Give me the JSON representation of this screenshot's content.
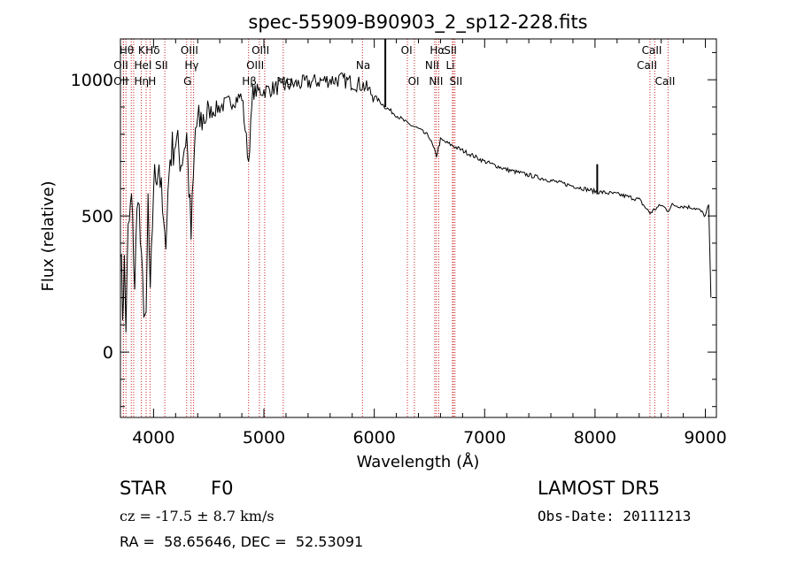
{
  "chart_data": {
    "type": "line",
    "title": "spec-55909-B90903_2_sp12-228.fits",
    "xlabel": "Wavelength (Å)",
    "ylabel": "Flux (relative)",
    "xlim": [
      3700,
      9100
    ],
    "ylim": [
      -240,
      1150
    ],
    "xticks": [
      4000,
      5000,
      6000,
      7000,
      8000,
      9000
    ],
    "yticks": [
      0,
      500,
      1000
    ],
    "grid": false,
    "series": [
      {
        "x": [
          3700,
          3720,
          3735,
          3750,
          3770,
          3800,
          3830,
          3860,
          3890,
          3933,
          3950,
          3970,
          4000,
          4050,
          4102,
          4150,
          4200,
          4250,
          4300,
          4340,
          4380,
          4450,
          4500,
          4600,
          4700,
          4800,
          4861,
          4900,
          5000,
          5100,
          5200,
          5300,
          5400,
          5500,
          5600,
          5700,
          5800,
          5900,
          5950,
          6000,
          6100,
          6200,
          6300,
          6400,
          6500,
          6563,
          6600,
          6700,
          6800,
          6900,
          7000,
          7200,
          7400,
          7600,
          7800,
          8000,
          8200,
          8400,
          8498,
          8542,
          8600,
          8662,
          8700,
          8800,
          8900,
          8950,
          9000,
          9030,
          9050
        ],
        "y": [
          430,
          150,
          320,
          100,
          430,
          560,
          250,
          620,
          300,
          80,
          560,
          170,
          620,
          700,
          380,
          720,
          780,
          700,
          800,
          420,
          820,
          860,
          880,
          900,
          920,
          940,
          700,
          955,
          960,
          970,
          980,
          985,
          990,
          995,
          1000,
          1000,
          990,
          980,
          960,
          940,
          900,
          870,
          840,
          820,
          790,
          720,
          780,
          760,
          740,
          720,
          700,
          670,
          650,
          630,
          610,
          590,
          580,
          560,
          510,
          525,
          540,
          520,
          540,
          535,
          530,
          520,
          500,
          540,
          200
        ]
      }
    ],
    "spikes": [
      {
        "x": 6100,
        "y": 1150
      },
      {
        "x": 8020,
        "y": 690
      }
    ],
    "lines": [
      {
        "x": 3750,
        "label": "Hθ",
        "row": 0
      },
      {
        "x": 3727,
        "label": "OII",
        "row": 1
      },
      {
        "x": 3727,
        "label": "OII",
        "row": 2
      },
      {
        "x": 3798,
        "label": "Hη",
        "row": 2
      },
      {
        "x": 3820,
        "label": "HeI",
        "row": 1
      },
      {
        "x": 3889,
        "label": "K",
        "row": 0
      },
      {
        "x": 3933,
        "label": "H",
        "row": 2
      },
      {
        "x": 3970,
        "label": "Hδ",
        "row": 0
      },
      {
        "x": 4102,
        "label": "SII",
        "row": 1
      },
      {
        "x": 4300,
        "label": "G",
        "row": 2
      },
      {
        "x": 4340,
        "label": "Hγ",
        "row": 1
      },
      {
        "x": 4363,
        "label": "OIII",
        "row": 0
      },
      {
        "x": 4861,
        "label": "Hβ",
        "row": 2
      },
      {
        "x": 4959,
        "label": "OIII",
        "row": 1
      },
      {
        "x": 5007,
        "label": "OIII",
        "row": 0
      },
      {
        "x": 5175,
        "label": "Mg",
        "row": 2
      },
      {
        "x": 5893,
        "label": "Na",
        "row": 1
      },
      {
        "x": 6300,
        "label": "OI",
        "row": 0
      },
      {
        "x": 6364,
        "label": "OI",
        "row": 2
      },
      {
        "x": 6548,
        "label": "NII",
        "row": 1
      },
      {
        "x": 6563,
        "label": "Hα",
        "row": 0
      },
      {
        "x": 6584,
        "label": "NII",
        "row": 2
      },
      {
        "x": 6708,
        "label": "Li",
        "row": 1
      },
      {
        "x": 6717,
        "label": "SII",
        "row": 0
      },
      {
        "x": 6731,
        "label": "SII",
        "row": 2
      },
      {
        "x": 8498,
        "label": "CaII",
        "row": 1
      },
      {
        "x": 8542,
        "label": "CaII",
        "row": 0
      },
      {
        "x": 8662,
        "label": "CaII",
        "row": 2
      }
    ]
  },
  "info": {
    "class_label": "STAR",
    "subclass": "F0",
    "cz": "cz = -17.5 ± 8.7 km/s",
    "coords": "RA =  58.65646, DEC =  52.53091",
    "survey": "LAMOST DR5",
    "obs_date": "Obs-Date: 20111213"
  }
}
